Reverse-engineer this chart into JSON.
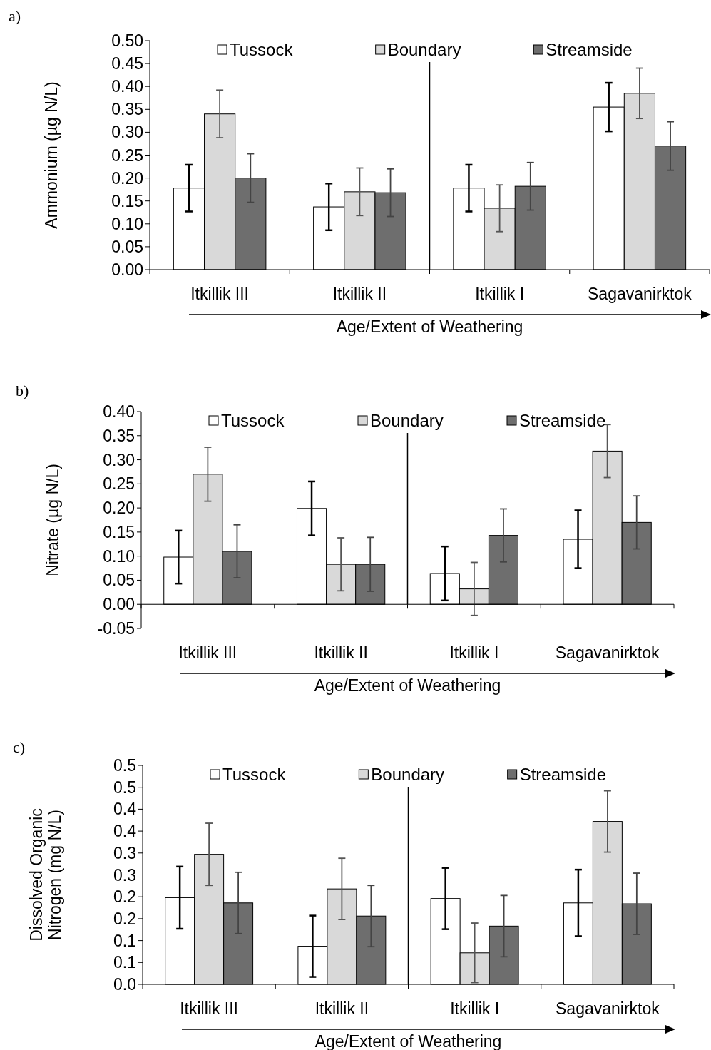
{
  "chart_data": [
    {
      "type": "bar",
      "title": "a)",
      "ylabel": "Ammonium (µg N/L)",
      "xlabel": "Age/Extent of Weathering",
      "categories": [
        "Itkillik III",
        "Itkillik II",
        "Itkillik I",
        "Sagavanirktok"
      ],
      "series": [
        {
          "name": "Tussock",
          "color": "#ffffff",
          "values": [
            0.178,
            0.137,
            0.178,
            0.355
          ],
          "errors": [
            0.051,
            0.051,
            0.051,
            0.053
          ]
        },
        {
          "name": "Boundary",
          "color": "#d9d9d9",
          "values": [
            0.34,
            0.17,
            0.134,
            0.385
          ],
          "errors": [
            0.052,
            0.052,
            0.051,
            0.055
          ]
        },
        {
          "name": "Streamside",
          "color": "#6e6e6e",
          "values": [
            0.2,
            0.168,
            0.182,
            0.27
          ],
          "errors": [
            0.053,
            0.052,
            0.052,
            0.053
          ]
        }
      ],
      "ylim": [
        0,
        0.5
      ],
      "yticks": [
        {
          "value": 0,
          "label": "0.00"
        },
        {
          "value": 0.05,
          "label": "0.05"
        },
        {
          "value": 0.1,
          "label": "0.10"
        },
        {
          "value": 0.15,
          "label": "0.15"
        },
        {
          "value": 0.2,
          "label": "0.20"
        },
        {
          "value": 0.25,
          "label": "0.25"
        },
        {
          "value": 0.3,
          "label": "0.30"
        },
        {
          "value": 0.35,
          "label": "0.35"
        },
        {
          "value": 0.4,
          "label": "0.40"
        },
        {
          "value": 0.45,
          "label": "0.45"
        },
        {
          "value": 0.5,
          "label": "0.50"
        }
      ],
      "legend": "top",
      "grid": false
    },
    {
      "type": "bar",
      "title": "b)",
      "ylabel": "Nitrate (µg N/L)",
      "xlabel": "Age/Extent of Weathering",
      "categories": [
        "Itkillik III",
        "Itkillik II",
        "Itkillik I",
        "Sagavanirktok"
      ],
      "series": [
        {
          "name": "Tussock",
          "color": "#ffffff",
          "values": [
            0.098,
            0.199,
            0.064,
            0.135
          ],
          "errors": [
            0.055,
            0.056,
            0.056,
            0.06
          ]
        },
        {
          "name": "Boundary",
          "color": "#d9d9d9",
          "values": [
            0.27,
            0.083,
            0.032,
            0.318
          ],
          "errors": [
            0.056,
            0.055,
            0.055,
            0.055
          ]
        },
        {
          "name": "Streamside",
          "color": "#6e6e6e",
          "values": [
            0.11,
            0.083,
            0.143,
            0.17
          ],
          "errors": [
            0.055,
            0.056,
            0.055,
            0.055
          ]
        }
      ],
      "ylim": [
        -0.05,
        0.4
      ],
      "yticks": [
        {
          "value": -0.05,
          "label": "-0.05"
        },
        {
          "value": 0,
          "label": "0.00"
        },
        {
          "value": 0.05,
          "label": "0.05"
        },
        {
          "value": 0.1,
          "label": "0.10"
        },
        {
          "value": 0.15,
          "label": "0.15"
        },
        {
          "value": 0.2,
          "label": "0.20"
        },
        {
          "value": 0.25,
          "label": "0.25"
        },
        {
          "value": 0.3,
          "label": "0.30"
        },
        {
          "value": 0.35,
          "label": "0.35"
        },
        {
          "value": 0.4,
          "label": "0.40"
        }
      ],
      "legend": "top",
      "grid": false
    },
    {
      "type": "bar",
      "title": "c)",
      "ylabel": "Dissolved Organic\nNitrogen (mg N/L)",
      "xlabel": "Age/Extent of Weathering",
      "categories": [
        "Itkillik III",
        "Itkillik II",
        "Itkillik I",
        "Sagavanirktok"
      ],
      "series": [
        {
          "name": "Tussock",
          "color": "#ffffff",
          "values": [
            0.198,
            0.087,
            0.196,
            0.186
          ],
          "errors": [
            0.071,
            0.07,
            0.07,
            0.076
          ]
        },
        {
          "name": "Boundary",
          "color": "#d9d9d9",
          "values": [
            0.297,
            0.218,
            0.072,
            0.372
          ],
          "errors": [
            0.071,
            0.07,
            0.068,
            0.07
          ]
        },
        {
          "name": "Streamside",
          "color": "#6e6e6e",
          "values": [
            0.186,
            0.156,
            0.133,
            0.184
          ],
          "errors": [
            0.07,
            0.07,
            0.07,
            0.07
          ]
        }
      ],
      "ylim": [
        0,
        0.5
      ],
      "yticks": [
        {
          "value": 0,
          "label": "0.0"
        },
        {
          "value": 0.05,
          "label": "0.1"
        },
        {
          "value": 0.1,
          "label": "0.1"
        },
        {
          "value": 0.15,
          "label": "0.2"
        },
        {
          "value": 0.2,
          "label": "0.2"
        },
        {
          "value": 0.25,
          "label": "0.3"
        },
        {
          "value": 0.3,
          "label": "0.3"
        },
        {
          "value": 0.35,
          "label": "0.4"
        },
        {
          "value": 0.4,
          "label": "0.4"
        },
        {
          "value": 0.45,
          "label": "0.5"
        },
        {
          "value": 0.5,
          "label": "0.5"
        }
      ],
      "legend": "top",
      "grid": false
    }
  ]
}
